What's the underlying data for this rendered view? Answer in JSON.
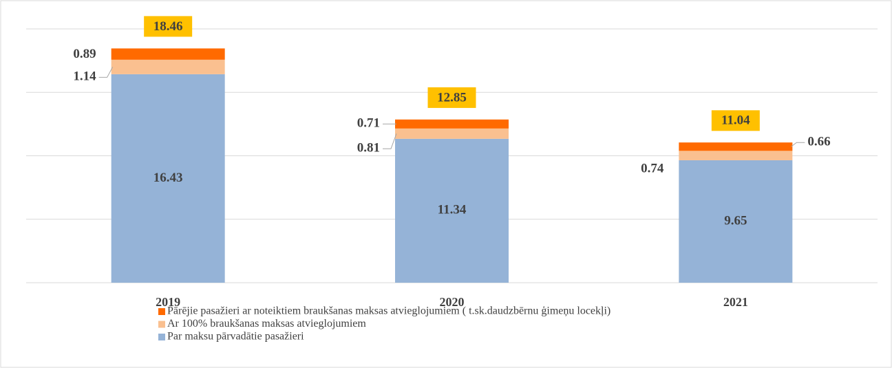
{
  "chart_data": {
    "type": "stacked_bar",
    "categories": [
      "2019",
      "2020",
      "2021"
    ],
    "series": [
      {
        "name": "Par maksu pārvadātie pasažieri",
        "color": "#95b3d7",
        "values": [
          16.43,
          11.34,
          9.65
        ]
      },
      {
        "name": "Ar 100% braukšanas maksas atvieglojumiem",
        "color": "#fac090",
        "values": [
          1.14,
          0.81,
          0.74
        ]
      },
      {
        "name": "Pārējie pasažieri ar noteiktiem braukšanas maksas atvieglojumiem ( t.sk.daudzbērnu ģimeņu locekļi)",
        "color": "#ff6a00",
        "values": [
          0.89,
          0.71,
          0.66
        ]
      }
    ],
    "totals": [
      18.46,
      12.85,
      11.04
    ],
    "totals_color": "#ffc000",
    "ylim": [
      0,
      20
    ],
    "yticks": [
      0,
      5,
      10,
      15,
      20
    ],
    "grid": true,
    "legend": "bottom"
  }
}
